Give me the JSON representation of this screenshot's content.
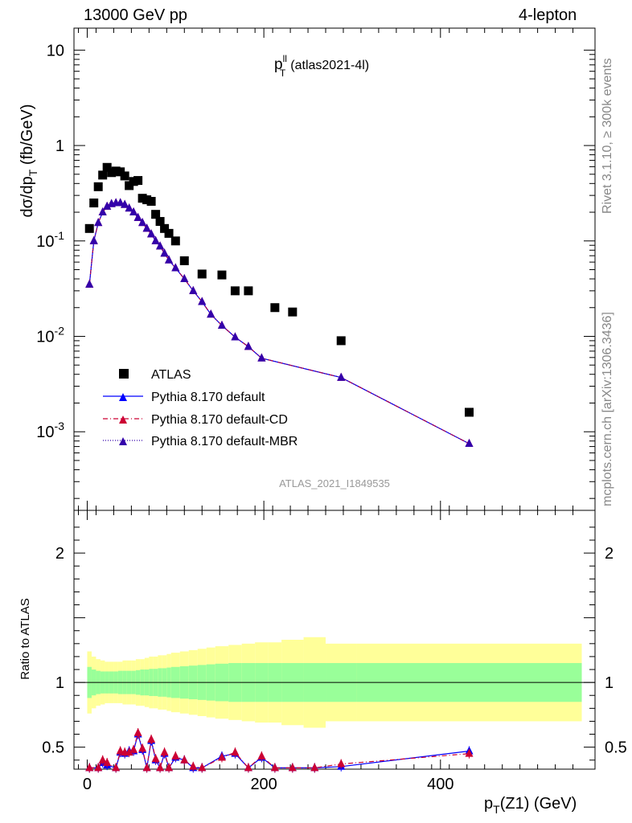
{
  "header": {
    "left": "13000 GeV pp",
    "right": "4-lepton"
  },
  "side_labels": {
    "rivet": "Rivet 3.1.10, ≥ 300k events",
    "mcplots": "mcplots.cern.ch [arXiv:1306.3436]"
  },
  "chart_data": {
    "type": "scatter",
    "title": {
      "main": "p",
      "sup": "ll",
      "sub": "T",
      "rest": "(atlas2021-4l)"
    },
    "watermark": "ATLAS_2021_I1849535",
    "xlabel": "p_T(Z1) (GeV)",
    "xlim": [
      -15,
      575
    ],
    "x_ticks": [
      0,
      200,
      400
    ],
    "main_panel": {
      "ylabel": "dσ/dp_T (fb/GeV)",
      "yscale": "log",
      "ylim": [
        0.00015,
        17
      ],
      "y_tick_labels": [
        "10",
        "1",
        "10^-1",
        "10^-2",
        "10^-3"
      ],
      "series": [
        {
          "name": "ATLAS",
          "marker": "square",
          "color": "#000000",
          "x": [
            2.5,
            7.5,
            12.5,
            17.5,
            22.5,
            27.5,
            32.5,
            37.5,
            42.5,
            47.5,
            52.5,
            57.5,
            62.5,
            67.5,
            72.5,
            77.5,
            82.5,
            87.5,
            92.5,
            100,
            110,
            120,
            130,
            140,
            152.5,
            167.5,
            182.5,
            197.5,
            212.5,
            232.5,
            257.5,
            287.5,
            432.5
          ],
          "y": [
            0.135,
            0.25,
            0.37,
            0.49,
            0.59,
            0.52,
            0.54,
            0.53,
            0.48,
            0.38,
            0.42,
            0.43,
            0.28,
            0.27,
            0.26,
            0.19,
            0.16,
            0.135,
            0.12,
            0.1,
            0.062,
            0.045,
            0.044,
            0.03,
            0.03,
            0.02,
            0.018,
            0.009,
            0.0016,
            null,
            null,
            null,
            null
          ]
        },
        {
          "name": "Pythia 8.170 default",
          "marker": "triangle",
          "line": "solid",
          "color": "#0000ff",
          "x": [
            2.5,
            7.5,
            12.5,
            17.5,
            22.5,
            27.5,
            32.5,
            37.5,
            42.5,
            47.5,
            52.5,
            57.5,
            62.5,
            67.5,
            72.5,
            77.5,
            82.5,
            87.5,
            92.5,
            100,
            110,
            120,
            130,
            140,
            152.5,
            167.5,
            182.5,
            197.5,
            212.5,
            232.5,
            257.5,
            287.5,
            432.5
          ],
          "y": [
            0.035,
            0.1,
            0.155,
            0.2,
            0.23,
            0.245,
            0.25,
            0.25,
            0.24,
            0.22,
            0.2,
            0.175,
            0.155,
            0.135,
            0.118,
            0.1,
            0.088,
            0.074,
            0.063,
            0.052,
            0.04,
            0.03,
            0.023,
            0.017,
            0.013,
            0.0098,
            0.0078,
            0.0059,
            0.0037,
            0.00075,
            null,
            null,
            null
          ]
        },
        {
          "name": "Pythia 8.170 default-CD",
          "marker": "triangle",
          "line": "dashdot",
          "color": "#cc0033",
          "x": [
            2.5,
            7.5,
            12.5,
            17.5,
            22.5,
            27.5,
            32.5,
            37.5,
            42.5,
            47.5,
            52.5,
            57.5,
            62.5,
            67.5,
            72.5,
            77.5,
            82.5,
            87.5,
            92.5,
            100,
            110,
            120,
            130,
            140,
            152.5,
            167.5,
            182.5,
            197.5,
            212.5,
            232.5,
            257.5,
            287.5,
            432.5
          ],
          "y": [
            0.035,
            0.1,
            0.155,
            0.2,
            0.23,
            0.245,
            0.25,
            0.25,
            0.24,
            0.22,
            0.2,
            0.175,
            0.155,
            0.135,
            0.118,
            0.1,
            0.088,
            0.074,
            0.063,
            0.052,
            0.04,
            0.03,
            0.023,
            0.017,
            0.013,
            0.0098,
            0.0078,
            0.0059,
            0.0037,
            0.00075,
            null,
            null,
            null
          ]
        },
        {
          "name": "Pythia 8.170 default-MBR",
          "marker": "triangle",
          "line": "dotted",
          "color": "#3300aa",
          "x": [
            2.5,
            7.5,
            12.5,
            17.5,
            22.5,
            27.5,
            32.5,
            37.5,
            42.5,
            47.5,
            52.5,
            57.5,
            62.5,
            67.5,
            72.5,
            77.5,
            82.5,
            87.5,
            92.5,
            100,
            110,
            120,
            130,
            140,
            152.5,
            167.5,
            182.5,
            197.5,
            212.5,
            232.5,
            257.5,
            287.5,
            432.5
          ],
          "y": [
            0.035,
            0.1,
            0.155,
            0.2,
            0.23,
            0.245,
            0.25,
            0.25,
            0.24,
            0.22,
            0.2,
            0.175,
            0.155,
            0.135,
            0.118,
            0.1,
            0.088,
            0.074,
            0.063,
            0.052,
            0.04,
            0.03,
            0.023,
            0.017,
            0.013,
            0.0098,
            0.0078,
            0.0059,
            0.0037,
            0.00075,
            null,
            null,
            null
          ]
        }
      ]
    },
    "ratio_panel": {
      "ylabel": "Ratio to ATLAS",
      "ylim": [
        0.33,
        2.33
      ],
      "y_ticks": [
        "0.5",
        "1",
        "2"
      ],
      "bin_edges": [
        0,
        5,
        10,
        15,
        20,
        25,
        30,
        35,
        40,
        45,
        50,
        55,
        60,
        65,
        70,
        75,
        80,
        85,
        90,
        95,
        105,
        115,
        125,
        135,
        145,
        160,
        175,
        190,
        205,
        220,
        245,
        270,
        305,
        560
      ],
      "band_stat": [
        0.12,
        0.1,
        0.09,
        0.085,
        0.085,
        0.085,
        0.085,
        0.09,
        0.09,
        0.09,
        0.09,
        0.095,
        0.1,
        0.1,
        0.105,
        0.105,
        0.11,
        0.11,
        0.115,
        0.12,
        0.125,
        0.13,
        0.135,
        0.14,
        0.145,
        0.15,
        0.15,
        0.15,
        0.15,
        0.15,
        0.15,
        0.15,
        0.15
      ],
      "band_total": [
        0.24,
        0.2,
        0.18,
        0.17,
        0.16,
        0.16,
        0.16,
        0.16,
        0.17,
        0.17,
        0.17,
        0.18,
        0.18,
        0.19,
        0.2,
        0.2,
        0.21,
        0.21,
        0.22,
        0.23,
        0.24,
        0.25,
        0.26,
        0.27,
        0.28,
        0.29,
        0.3,
        0.31,
        0.31,
        0.33,
        0.35,
        0.3,
        0.3
      ],
      "series": [
        {
          "name": "Pythia 8.170 default",
          "x": [
            2.5,
            7.5,
            12.5,
            17.5,
            22.5,
            27.5,
            32.5,
            37.5,
            42.5,
            47.5,
            52.5,
            57.5,
            62.5,
            67.5,
            72.5,
            77.5,
            82.5,
            87.5,
            92.5,
            100,
            110,
            120,
            130,
            140,
            152.5,
            167.5,
            182.5,
            197.5,
            212.5,
            232.5,
            257.5,
            287.5,
            432.5
          ],
          "y": [
            0.26,
            0.33,
            0.38,
            0.36,
            0.34,
            0.46,
            0.45,
            0.47,
            0.47,
            0.6,
            0.48,
            0.3,
            0.55,
            0.4,
            0.32,
            0.45,
            0.33,
            0.42,
            0.4,
            0.34,
            0.3,
            0.43,
            0.45,
            0.32,
            0.42,
            0.27,
            0.28,
            0.23,
            0.35,
            0.47,
            null,
            null,
            null
          ]
        },
        {
          "name": "Pythia 8.170 default-CD",
          "x": [
            2.5,
            7.5,
            12.5,
            17.5,
            22.5,
            27.5,
            32.5,
            37.5,
            42.5,
            47.5,
            52.5,
            57.5,
            62.5,
            67.5,
            72.5,
            77.5,
            82.5,
            87.5,
            92.5,
            100,
            110,
            120,
            130,
            140,
            152.5,
            167.5,
            182.5,
            197.5,
            212.5,
            232.5,
            257.5,
            287.5,
            432.5
          ],
          "y": [
            0.26,
            0.33,
            0.4,
            0.38,
            0.34,
            0.47,
            0.46,
            0.46,
            0.48,
            0.61,
            0.49,
            0.31,
            0.56,
            0.41,
            0.33,
            0.46,
            0.34,
            0.43,
            0.4,
            0.35,
            0.3,
            0.42,
            0.46,
            0.33,
            0.43,
            0.27,
            0.28,
            0.23,
            0.37,
            0.45,
            null,
            null,
            null
          ]
        }
      ]
    }
  }
}
